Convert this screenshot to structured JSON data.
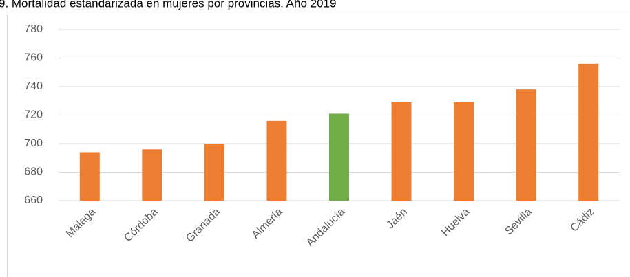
{
  "chart_data": {
    "type": "bar",
    "title": "9. Mortalidad estandarizada en mujeres por provincias. Año 2019",
    "categories": [
      "Málaga",
      "Córdoba",
      "Granada",
      "Almería",
      "Andalucía",
      "Jaén",
      "Huelva",
      "Sevilla",
      "Cádiz"
    ],
    "values": [
      694,
      696,
      700,
      716,
      721,
      729,
      729,
      738,
      756
    ],
    "colors": [
      "#ed7d31",
      "#ed7d31",
      "#ed7d31",
      "#ed7d31",
      "#70ad47",
      "#ed7d31",
      "#ed7d31",
      "#ed7d31",
      "#ed7d31"
    ],
    "ylim": [
      660,
      780
    ],
    "yticks": [
      660,
      680,
      700,
      720,
      740,
      760,
      780
    ],
    "grid": true
  }
}
